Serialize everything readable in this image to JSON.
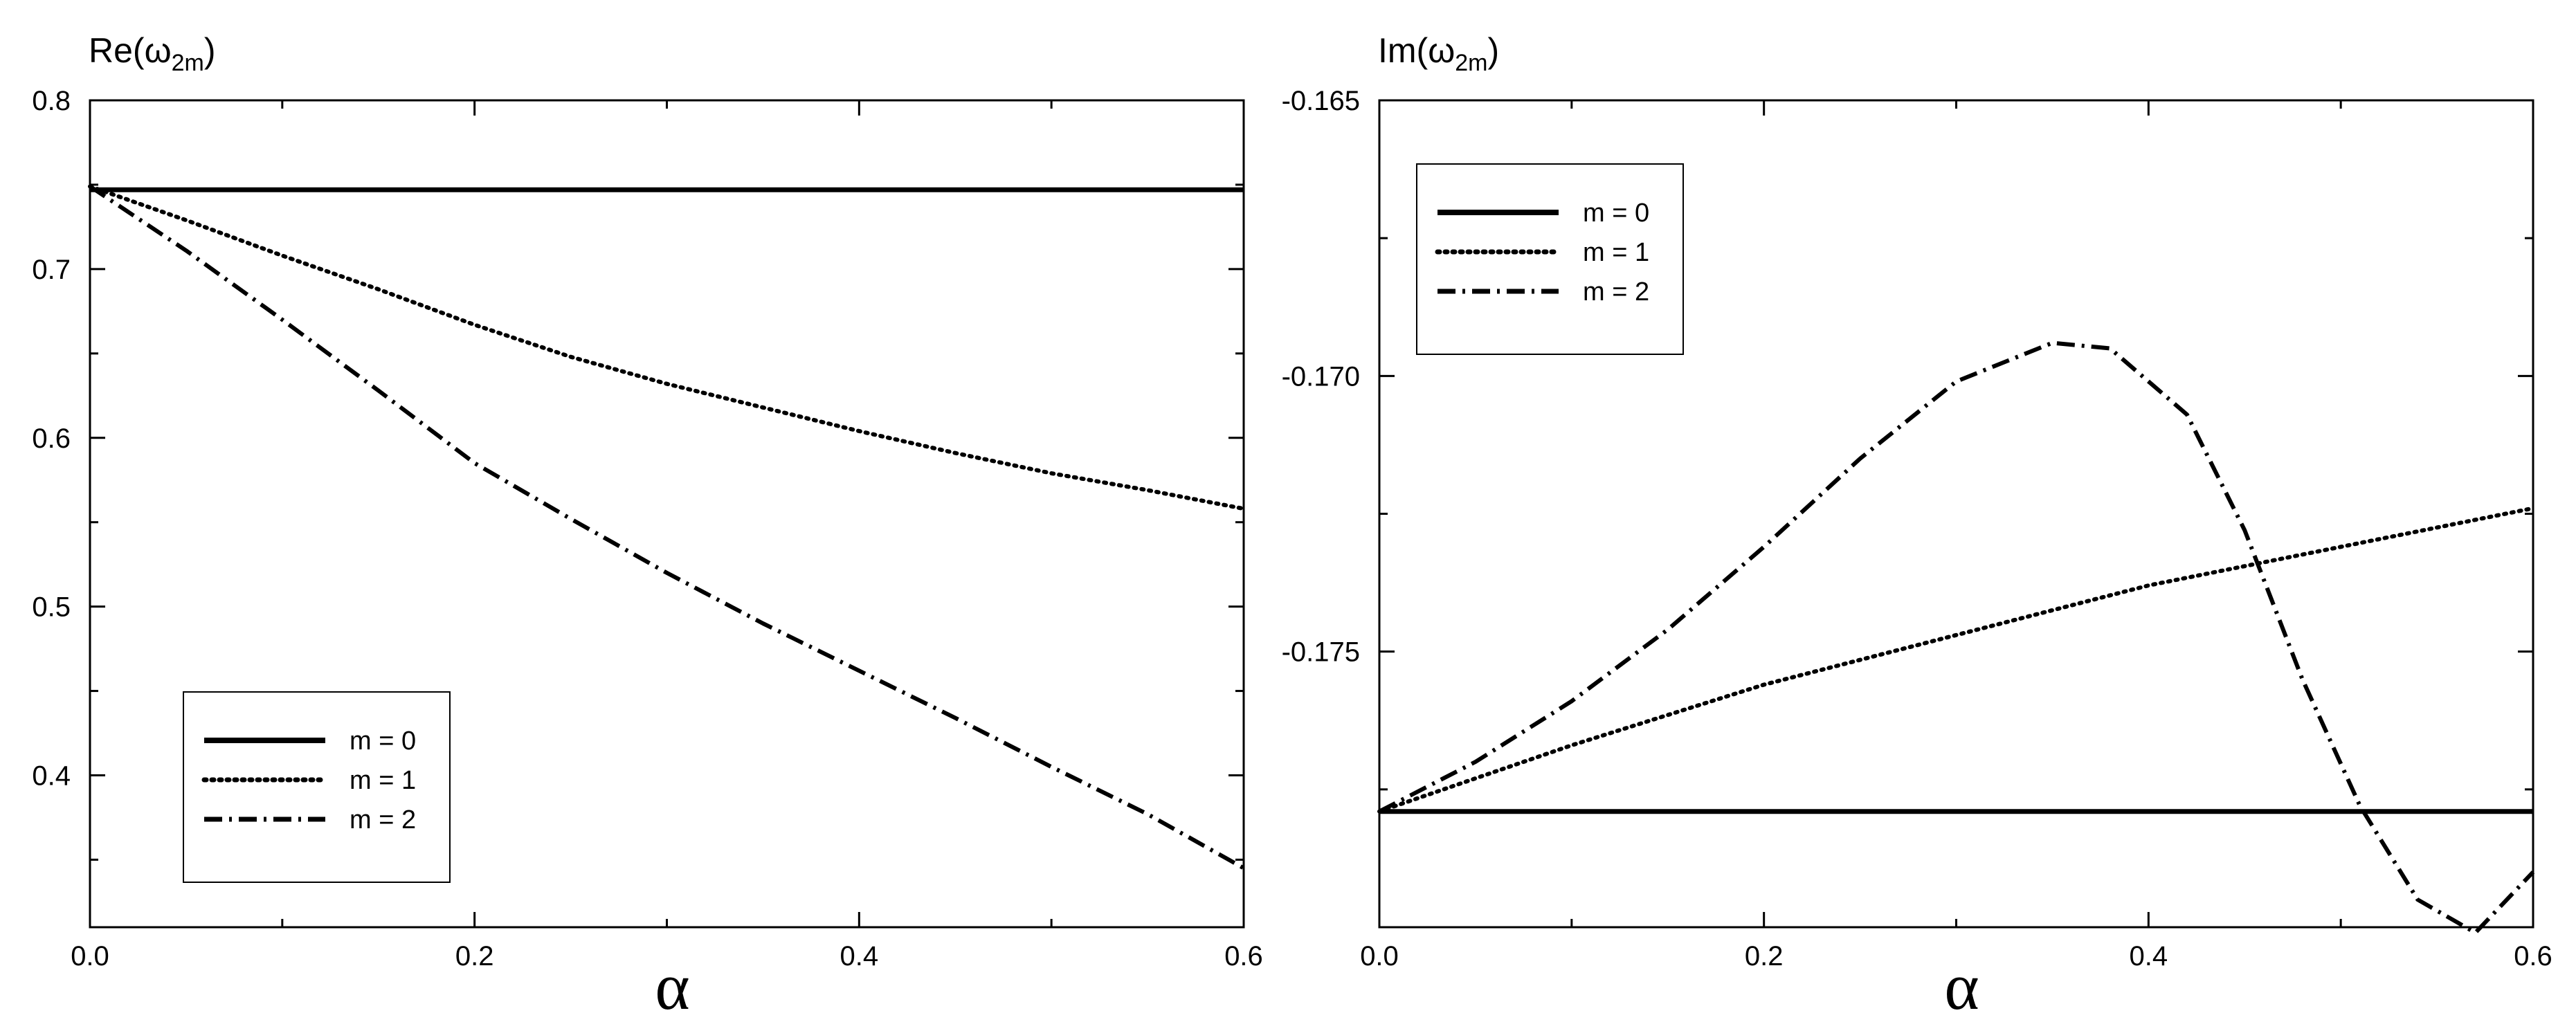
{
  "chart_data": [
    {
      "type": "line",
      "panel": "left",
      "ylabel": {
        "main": "Re(ω",
        "sub": "2m",
        "close": ")"
      },
      "xlabel": "α",
      "xlim": [
        0.0,
        0.6
      ],
      "ylim": [
        0.31,
        0.8
      ],
      "x_ticks": [
        0.0,
        0.2,
        0.4,
        0.6
      ],
      "x_tick_labels": [
        "0.0",
        "0.2",
        "0.4",
        "0.6"
      ],
      "y_ticks": [
        0.4,
        0.5,
        0.6,
        0.7,
        0.8
      ],
      "y_tick_labels": [
        "0.4",
        "0.5",
        "0.6",
        "0.7",
        "0.8"
      ],
      "grid": false,
      "legend_position": "bottom-left",
      "series": [
        {
          "name": "m = 0",
          "style": "solid",
          "points": [
            [
              0.0,
              0.747
            ],
            [
              0.6,
              0.747
            ]
          ]
        },
        {
          "name": "m = 1",
          "style": "dotted",
          "points": [
            [
              0.0,
              0.749
            ],
            [
              0.05,
              0.729
            ],
            [
              0.1,
              0.708
            ],
            [
              0.15,
              0.688
            ],
            [
              0.2,
              0.667
            ],
            [
              0.25,
              0.648
            ],
            [
              0.3,
              0.632
            ],
            [
              0.35,
              0.618
            ],
            [
              0.4,
              0.604
            ],
            [
              0.45,
              0.591
            ],
            [
              0.5,
              0.579
            ],
            [
              0.55,
              0.569
            ],
            [
              0.6,
              0.558
            ]
          ]
        },
        {
          "name": "m = 2",
          "style": "dashdot",
          "points": [
            [
              0.0,
              0.749
            ],
            [
              0.05,
              0.711
            ],
            [
              0.1,
              0.67
            ],
            [
              0.15,
              0.628
            ],
            [
              0.2,
              0.585
            ],
            [
              0.25,
              0.552
            ],
            [
              0.3,
              0.52
            ],
            [
              0.35,
              0.49
            ],
            [
              0.4,
              0.462
            ],
            [
              0.45,
              0.434
            ],
            [
              0.5,
              0.405
            ],
            [
              0.55,
              0.377
            ],
            [
              0.6,
              0.345
            ]
          ]
        }
      ]
    },
    {
      "type": "line",
      "panel": "right",
      "ylabel": {
        "main": "Im(ω",
        "sub": "2m",
        "close": ")"
      },
      "xlabel": "α",
      "xlim": [
        0.0,
        0.6
      ],
      "ylim": [
        -0.18,
        -0.165
      ],
      "x_ticks": [
        0.0,
        0.2,
        0.4,
        0.6
      ],
      "x_tick_labels": [
        "0.0",
        "0.2",
        "0.4",
        "0.6"
      ],
      "y_ticks": [
        -0.175,
        -0.17,
        -0.165
      ],
      "y_tick_labels": [
        "-0.175",
        "-0.170",
        "-0.165"
      ],
      "grid": false,
      "legend_position": "top-left",
      "series": [
        {
          "name": "m = 0",
          "style": "solid",
          "points": [
            [
              0.0,
              -0.1779
            ],
            [
              0.6,
              -0.1779
            ]
          ]
        },
        {
          "name": "m = 1",
          "style": "dotted",
          "points": [
            [
              0.0,
              -0.1779
            ],
            [
              0.1,
              -0.1767
            ],
            [
              0.2,
              -0.1756
            ],
            [
              0.3,
              -0.1747
            ],
            [
              0.4,
              -0.1738
            ],
            [
              0.5,
              -0.1731
            ],
            [
              0.6,
              -0.1724
            ]
          ]
        },
        {
          "name": "m = 2",
          "style": "dashdot",
          "points": [
            [
              0.0,
              -0.1779
            ],
            [
              0.05,
              -0.177
            ],
            [
              0.1,
              -0.1759
            ],
            [
              0.15,
              -0.1746
            ],
            [
              0.2,
              -0.1731
            ],
            [
              0.25,
              -0.1715
            ],
            [
              0.3,
              -0.1701
            ],
            [
              0.35,
              -0.1694
            ],
            [
              0.38,
              -0.1695
            ],
            [
              0.42,
              -0.1707
            ],
            [
              0.45,
              -0.1728
            ],
            [
              0.48,
              -0.1755
            ],
            [
              0.51,
              -0.1778
            ],
            [
              0.54,
              -0.1795
            ],
            [
              0.57,
              -0.1801
            ],
            [
              0.6,
              -0.179
            ]
          ]
        }
      ]
    }
  ]
}
